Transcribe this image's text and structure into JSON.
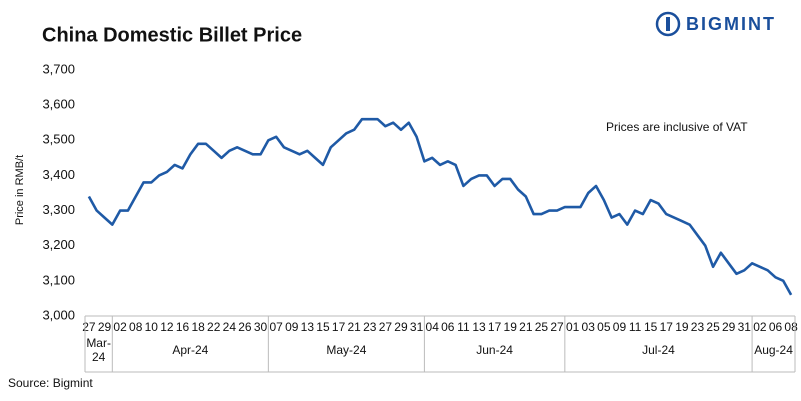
{
  "brand": "BIGMINT",
  "chart_data": {
    "type": "line",
    "title": "China Domestic Billet Price",
    "y_label": "Price in RMB/t",
    "annotation": "Prices are inclusive of VAT",
    "source": "Source: Bigmint",
    "categories": [
      "27",
      null,
      "29",
      null,
      "02",
      null,
      "08",
      null,
      "10",
      null,
      "12",
      null,
      "16",
      null,
      "18",
      null,
      "22",
      null,
      "24",
      null,
      "26",
      null,
      "30",
      null,
      "07",
      null,
      "09",
      null,
      "13",
      null,
      "15",
      null,
      "17",
      null,
      "21",
      null,
      "23",
      null,
      "27",
      null,
      "29",
      null,
      "31",
      null,
      "04",
      null,
      "06",
      null,
      "11",
      null,
      "13",
      null,
      "17",
      null,
      "19",
      null,
      "21",
      null,
      "25",
      null,
      "27",
      null,
      "01",
      null,
      "03",
      null,
      "05",
      null,
      "09",
      null,
      "11",
      null,
      "15",
      null,
      "17",
      null,
      "19",
      null,
      "23",
      null,
      "25",
      null,
      "29",
      null,
      "31",
      null,
      "02",
      null,
      "06",
      null,
      "08"
    ],
    "months": [
      [
        "Mar-",
        "24"
      ],
      [
        "Apr-24"
      ],
      [
        "May-24"
      ],
      [
        "Jun-24"
      ],
      [
        "Jul-24"
      ],
      [
        "Aug-24"
      ]
    ],
    "series": [
      {
        "name": "China Domestic Billet Price",
        "color": "#1f5aa6",
        "values": [
          3340,
          3300,
          3280,
          3260,
          3300,
          3300,
          3340,
          3380,
          3380,
          3400,
          3410,
          3430,
          3420,
          3460,
          3490,
          3490,
          3470,
          3450,
          3470,
          3480,
          3470,
          3460,
          3460,
          3500,
          3510,
          3480,
          3470,
          3460,
          3470,
          3450,
          3430,
          3480,
          3500,
          3520,
          3530,
          3560,
          3560,
          3560,
          3540,
          3550,
          3530,
          3550,
          3510,
          3440,
          3450,
          3430,
          3440,
          3430,
          3370,
          3390,
          3400,
          3400,
          3370,
          3390,
          3390,
          3360,
          3340,
          3290,
          3290,
          3300,
          3300,
          3310,
          3310,
          3310,
          3350,
          3370,
          3330,
          3280,
          3290,
          3260,
          3300,
          3290,
          3330,
          3320,
          3290,
          3280,
          3270,
          3260,
          3230,
          3200,
          3140,
          3180,
          3150,
          3120,
          3130,
          3150,
          3140,
          3130,
          3110,
          3100,
          3060
        ]
      }
    ],
    "ylim": [
      3000,
      3700
    ],
    "yticks": [
      {
        "value": 3000,
        "label": "3,000"
      },
      {
        "value": 3100,
        "label": "3,100"
      },
      {
        "value": 3200,
        "label": "3,200"
      },
      {
        "value": 3300,
        "label": "3,300"
      },
      {
        "value": 3400,
        "label": "3,400"
      },
      {
        "value": 3500,
        "label": "3,500"
      },
      {
        "value": 3600,
        "label": "3,600"
      },
      {
        "value": 3700,
        "label": "3,700"
      }
    ],
    "grid": false
  }
}
